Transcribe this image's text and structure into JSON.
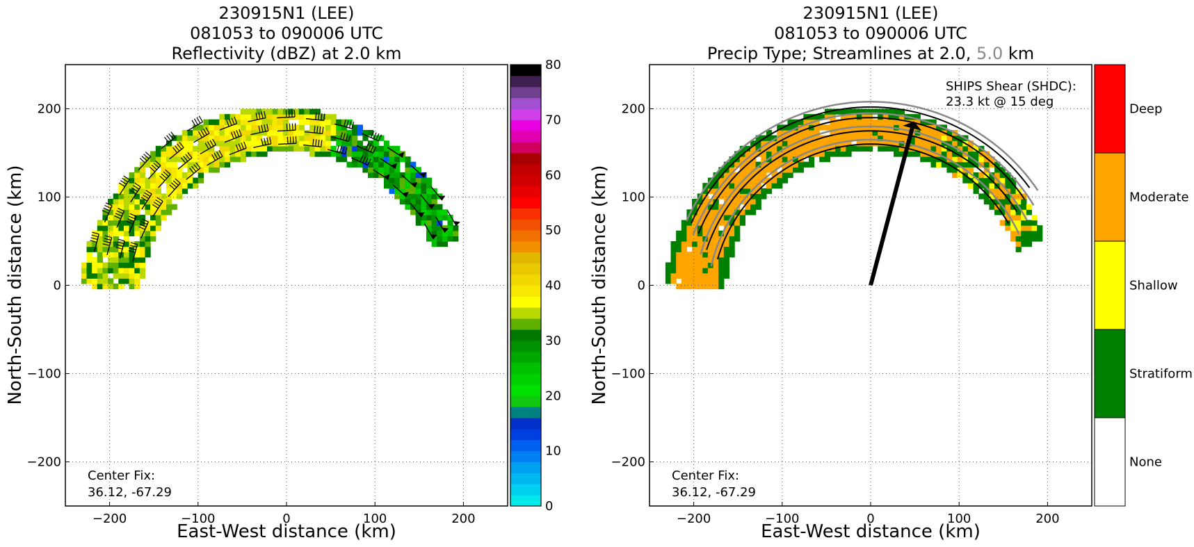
{
  "chart_data": [
    {
      "type": "heatmap",
      "title_lines": [
        "230915N1 (LEE)",
        "081053 to 090006 UTC",
        "Reflectivity (dBZ) at 2.0 km"
      ],
      "xlabel": "East-West distance (km)",
      "ylabel": "North-South distance (km)",
      "xlim": [
        -250,
        250
      ],
      "ylim": [
        -250,
        250
      ],
      "xticks": [
        -200,
        -100,
        0,
        100,
        200
      ],
      "yticks": [
        -200,
        -100,
        0,
        100,
        200
      ],
      "grid": true,
      "annotation": [
        "Center Fix:",
        "36.12, -67.29"
      ],
      "colorbar": {
        "label": "",
        "ticks": [
          0,
          10,
          20,
          30,
          40,
          50,
          60,
          70,
          80
        ],
        "range": [
          0,
          80
        ],
        "colors": [
          "#00e8e8",
          "#00d0f0",
          "#00b8f0",
          "#00a0f0",
          "#0080f0",
          "#0060f0",
          "#0040e0",
          "#0030c8",
          "#008080",
          "#10c810",
          "#00e000",
          "#00d000",
          "#00c000",
          "#00a800",
          "#009000",
          "#007800",
          "#60b000",
          "#b8d800",
          "#ffff00",
          "#f8e800",
          "#f0d800",
          "#e8c800",
          "#e0b800",
          "#f09000",
          "#f07000",
          "#f05000",
          "#f83000",
          "#ff0000",
          "#e80000",
          "#d00000",
          "#c00000",
          "#a80000",
          "#d00060",
          "#e000b0",
          "#e800e0",
          "#d040e8",
          "#a050d0",
          "#704090",
          "#402050",
          "#000000"
        ]
      },
      "echo_region": {
        "description_free": true,
        "inner_radius_km": 170,
        "outer_radius_km": 230,
        "arc_center_km": [
          0,
          -20
        ]
      },
      "wind_barbs": "present"
    },
    {
      "type": "heatmap",
      "title_lines": [
        "230915N1 (LEE)",
        "081053 to 090006 UTC"
      ],
      "title_line3_parts": [
        "Precip Type; Streamlines at 2.0, ",
        "5.0",
        " km"
      ],
      "title_line3_colors": [
        "#000000",
        "#888888",
        "#000000"
      ],
      "xlabel": "East-West distance (km)",
      "ylabel": "North-South distance (km)",
      "xlim": [
        -250,
        250
      ],
      "ylim": [
        -250,
        250
      ],
      "xticks": [
        -200,
        -100,
        0,
        100,
        200
      ],
      "yticks": [
        -200,
        -100,
        0,
        100,
        200
      ],
      "grid": true,
      "annotation": [
        "Center Fix:",
        "36.12, -67.29"
      ],
      "shear_text": [
        "SHIPS Shear (SHDC):",
        "23.3 kt @ 15 deg"
      ],
      "shear_vector": {
        "x0": 0,
        "y0": 0,
        "x1": 47,
        "y1": 178
      },
      "colorbar": {
        "categories": [
          "None",
          "Stratiform",
          "Shallow",
          "Moderate",
          "Deep"
        ],
        "colors": [
          "#ffffff",
          "#008000",
          "#ffff00",
          "#ffa500",
          "#ff0000"
        ]
      },
      "streamline_colors": {
        "level_2km": "#000000",
        "level_5km": "#888888"
      }
    }
  ]
}
